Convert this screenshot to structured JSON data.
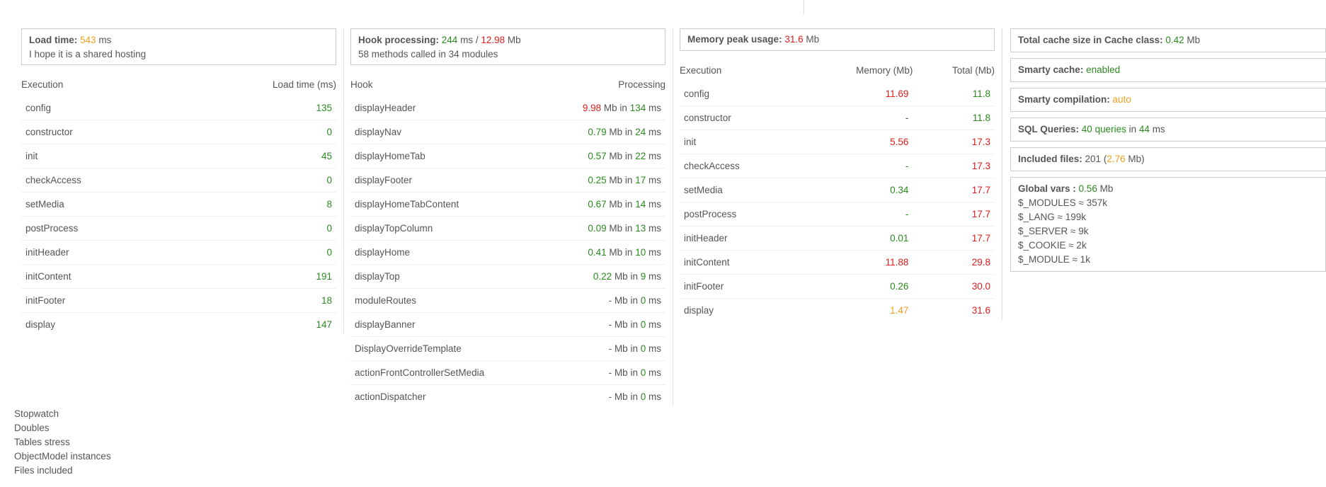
{
  "load": {
    "title": "Load time",
    "value": "543",
    "unit": "ms",
    "note": "I hope it is a shared hosting",
    "headers": [
      "Execution",
      "Load time (ms)"
    ],
    "rows": [
      {
        "name": "config",
        "value": "135"
      },
      {
        "name": "constructor",
        "value": "0"
      },
      {
        "name": "init",
        "value": "45"
      },
      {
        "name": "checkAccess",
        "value": "0"
      },
      {
        "name": "setMedia",
        "value": "8"
      },
      {
        "name": "postProcess",
        "value": "0"
      },
      {
        "name": "initHeader",
        "value": "0"
      },
      {
        "name": "initContent",
        "value": "191"
      },
      {
        "name": "initFooter",
        "value": "18"
      },
      {
        "name": "display",
        "value": "147"
      }
    ]
  },
  "hooks": {
    "title": "Hook processing",
    "time": "244",
    "time_unit": "ms /",
    "mem": "12.98",
    "mem_unit": "Mb",
    "note": "58 methods called in 34 modules",
    "headers": [
      "Hook",
      "Processing"
    ],
    "mb_in": "Mb in",
    "ms": "ms",
    "rows": [
      {
        "name": "displayHeader",
        "mb": "9.98",
        "mb_color": "r",
        "ms": "134"
      },
      {
        "name": "displayNav",
        "mb": "0.79",
        "mb_color": "g",
        "ms": "24"
      },
      {
        "name": "displayHomeTab",
        "mb": "0.57",
        "mb_color": "g",
        "ms": "22"
      },
      {
        "name": "displayFooter",
        "mb": "0.25",
        "mb_color": "g",
        "ms": "17"
      },
      {
        "name": "displayHomeTabContent",
        "mb": "0.67",
        "mb_color": "g",
        "ms": "14"
      },
      {
        "name": "displayTopColumn",
        "mb": "0.09",
        "mb_color": "g",
        "ms": "13"
      },
      {
        "name": "displayHome",
        "mb": "0.41",
        "mb_color": "g",
        "ms": "10"
      },
      {
        "name": "displayTop",
        "mb": "0.22",
        "mb_color": "g",
        "ms": "9"
      },
      {
        "name": "moduleRoutes",
        "mb": "-",
        "mb_color": "n",
        "ms": "0"
      },
      {
        "name": "displayBanner",
        "mb": "-",
        "mb_color": "n",
        "ms": "0"
      },
      {
        "name": "DisplayOverrideTemplate",
        "mb": "-",
        "mb_color": "n",
        "ms": "0"
      },
      {
        "name": "actionFrontControllerSetMedia",
        "mb": "-",
        "mb_color": "n",
        "ms": "0"
      },
      {
        "name": "actionDispatcher",
        "mb": "-",
        "mb_color": "n",
        "ms": "0"
      }
    ]
  },
  "memory": {
    "title": "Memory peak usage",
    "value": "31.6",
    "unit": "Mb",
    "headers": [
      "Execution",
      "Memory (Mb)",
      "Total (Mb)"
    ],
    "rows": [
      {
        "name": "config",
        "mem": "11.69",
        "mem_color": "r",
        "total": "11.8",
        "total_color": "g"
      },
      {
        "name": "constructor",
        "mem": "-",
        "mem_color": "n",
        "total": "11.8",
        "total_color": "g"
      },
      {
        "name": "init",
        "mem": "5.56",
        "mem_color": "r",
        "total": "17.3",
        "total_color": "r"
      },
      {
        "name": "checkAccess",
        "mem": "-",
        "mem_color": "g",
        "total": "17.3",
        "total_color": "r"
      },
      {
        "name": "setMedia",
        "mem": "0.34",
        "mem_color": "g",
        "total": "17.7",
        "total_color": "r"
      },
      {
        "name": "postProcess",
        "mem": "-",
        "mem_color": "g",
        "total": "17.7",
        "total_color": "r"
      },
      {
        "name": "initHeader",
        "mem": "0.01",
        "mem_color": "g",
        "total": "17.7",
        "total_color": "r"
      },
      {
        "name": "initContent",
        "mem": "11.88",
        "mem_color": "r",
        "total": "29.8",
        "total_color": "r"
      },
      {
        "name": "initFooter",
        "mem": "0.26",
        "mem_color": "g",
        "total": "30.0",
        "total_color": "r"
      },
      {
        "name": "display",
        "mem": "1.47",
        "mem_color": "o",
        "total": "31.6",
        "total_color": "r"
      }
    ]
  },
  "side": {
    "cache_label": "Total cache size in Cache class",
    "cache_value": "0.42",
    "cache_unit": "Mb",
    "smarty_cache_label": "Smarty cache",
    "smarty_cache_value": "enabled",
    "smarty_comp_label": "Smarty compilation",
    "smarty_comp_value": "auto",
    "sql_label": "SQL Queries",
    "sql_value": "40 queries",
    "sql_in": "in",
    "sql_ms": "44",
    "sql_unit": "ms",
    "files_label": "Included files",
    "files_count": "201",
    "files_size": "2.76",
    "files_unit": "Mb",
    "globals_label": "Global vars :",
    "globals_value": "0.56",
    "globals_unit": "Mb",
    "globals": [
      "$_MODULES ≈ 357k",
      "$_LANG ≈ 199k",
      "$_SERVER ≈ 9k",
      "$_COOKIE ≈ 2k",
      "$_MODULE ≈ 1k"
    ]
  },
  "bottom_links": [
    "Stopwatch",
    "Doubles",
    "Tables stress",
    "ObjectModel instances",
    "Files included"
  ],
  "colors": {
    "green": "#2a8a1e",
    "red": "#e01b1b",
    "orange": "#f0a020"
  }
}
